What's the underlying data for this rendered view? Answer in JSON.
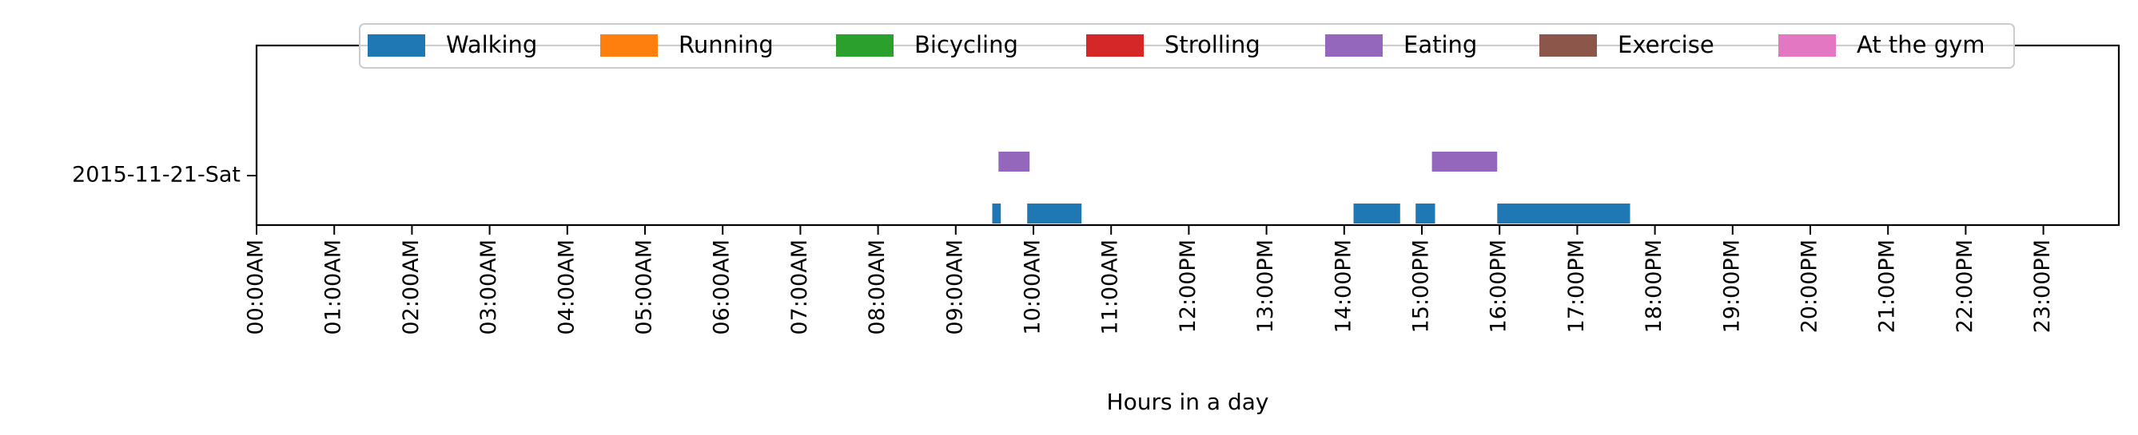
{
  "chart_data": {
    "type": "timeline",
    "title": "",
    "xlabel": "Hours in a day",
    "ylabel": "",
    "x_unit": "hours",
    "xlim": [
      0,
      24
    ],
    "x_ticks": [
      {
        "value": 0,
        "label": "00:00AM"
      },
      {
        "value": 1,
        "label": "01:00AM"
      },
      {
        "value": 2,
        "label": "02:00AM"
      },
      {
        "value": 3,
        "label": "03:00AM"
      },
      {
        "value": 4,
        "label": "04:00AM"
      },
      {
        "value": 5,
        "label": "05:00AM"
      },
      {
        "value": 6,
        "label": "06:00AM"
      },
      {
        "value": 7,
        "label": "07:00AM"
      },
      {
        "value": 8,
        "label": "08:00AM"
      },
      {
        "value": 9,
        "label": "09:00AM"
      },
      {
        "value": 10,
        "label": "10:00AM"
      },
      {
        "value": 11,
        "label": "11:00AM"
      },
      {
        "value": 12,
        "label": "12:00PM"
      },
      {
        "value": 13,
        "label": "13:00PM"
      },
      {
        "value": 14,
        "label": "14:00PM"
      },
      {
        "value": 15,
        "label": "15:00PM"
      },
      {
        "value": 16,
        "label": "16:00PM"
      },
      {
        "value": 17,
        "label": "17:00PM"
      },
      {
        "value": 18,
        "label": "18:00PM"
      },
      {
        "value": 19,
        "label": "19:00PM"
      },
      {
        "value": 20,
        "label": "20:00PM"
      },
      {
        "value": 21,
        "label": "21:00PM"
      },
      {
        "value": 22,
        "label": "22:00PM"
      },
      {
        "value": 23,
        "label": "23:00PM"
      }
    ],
    "y_categories": [
      "2015-11-21-Sat"
    ],
    "grid": false,
    "legend": {
      "placement": "top-center",
      "entries": [
        {
          "label": "Walking",
          "color": "#1f77b4"
        },
        {
          "label": "Running",
          "color": "#ff7f0e"
        },
        {
          "label": "Bicycling",
          "color": "#2ca02c"
        },
        {
          "label": "Strolling",
          "color": "#d62728"
        },
        {
          "label": "Eating",
          "color": "#9467bd"
        },
        {
          "label": "Exercise",
          "color": "#8c564b"
        },
        {
          "label": "At the gym",
          "color": "#e377c2"
        }
      ]
    },
    "series": [
      {
        "name": "Walking",
        "color": "#1f77b4",
        "category": "2015-11-21-Sat",
        "intervals": [
          [
            9.47,
            9.58
          ],
          [
            9.92,
            10.62
          ],
          [
            14.12,
            14.72
          ],
          [
            14.92,
            15.17
          ],
          [
            15.97,
            17.68
          ]
        ]
      },
      {
        "name": "Eating",
        "color": "#9467bd",
        "category": "2015-11-21-Sat",
        "intervals": [
          [
            9.55,
            9.95
          ],
          [
            15.13,
            15.97
          ]
        ]
      }
    ]
  }
}
